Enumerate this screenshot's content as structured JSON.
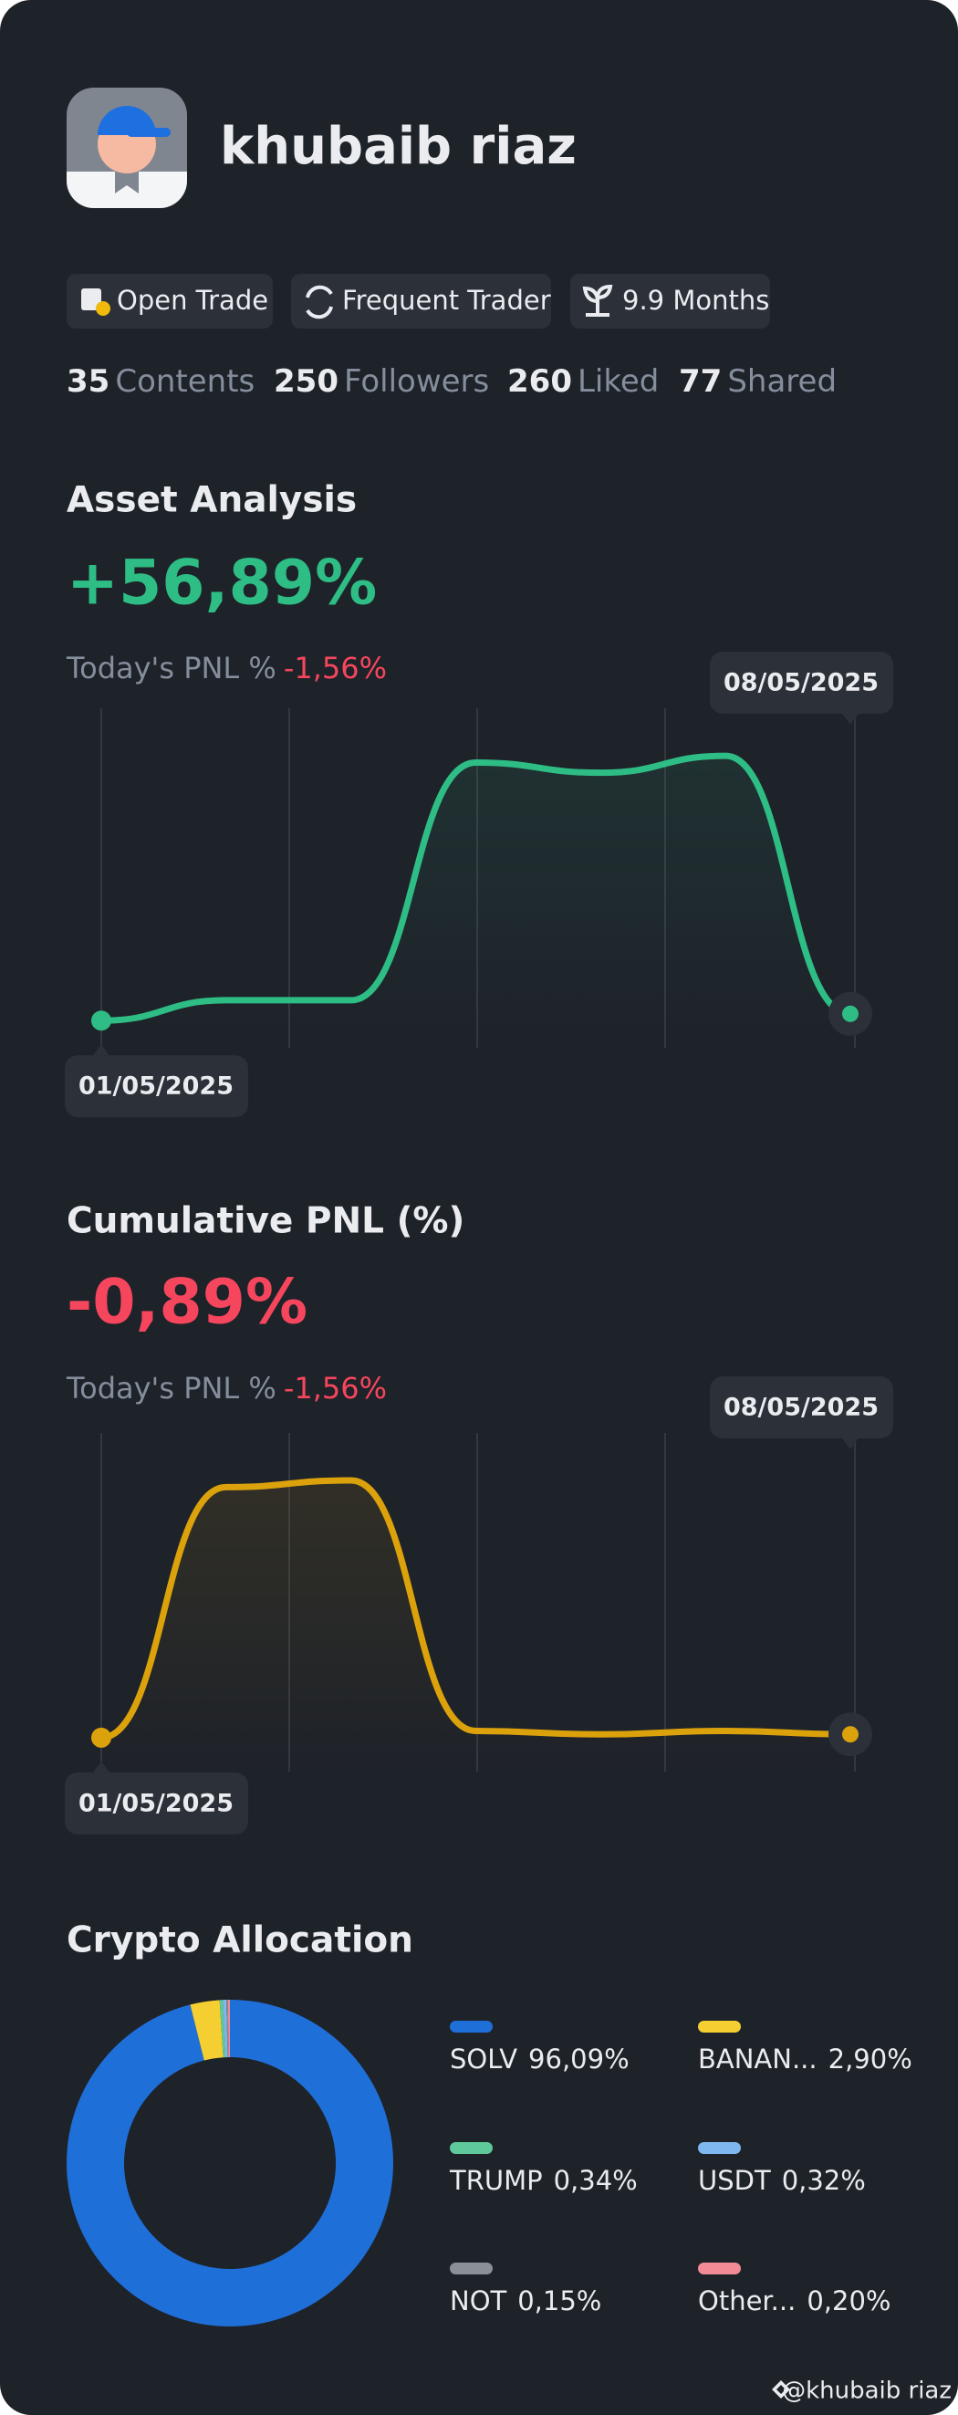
{
  "profile": {
    "name": "khubaib riaz",
    "badges": [
      "Open Trade",
      "Frequent Trader",
      "9.9 Months"
    ],
    "stats": [
      {
        "value": "35",
        "label": "Contents"
      },
      {
        "value": "250",
        "label": "Followers"
      },
      {
        "value": "260",
        "label": "Liked"
      },
      {
        "value": "77",
        "label": "Shared"
      }
    ]
  },
  "asset_analysis": {
    "title": "Asset Analysis",
    "value": "+56,89%",
    "today_label": "Today's PNL %",
    "today_value": "-1,56%",
    "chart": {
      "type": "line",
      "color": "#2ebd85",
      "values": [
        8,
        14,
        14,
        84,
        81,
        86,
        10
      ],
      "ylim": [
        0,
        100
      ],
      "start_label": "01/05/2025",
      "end_label": "08/05/2025"
    }
  },
  "cumulative_pnl": {
    "title": "Cumulative PNL (%)",
    "value": "-0,89%",
    "today_label": "Today's PNL %",
    "today_value": "-1,56%",
    "chart": {
      "type": "line",
      "color": "#dca20c",
      "values": [
        10,
        84,
        86,
        12,
        11,
        12,
        11
      ],
      "ylim": [
        0,
        100
      ],
      "start_label": "01/05/2025",
      "end_label": "08/05/2025"
    }
  },
  "crypto_allocation": {
    "title": "Crypto Allocation",
    "chart": {
      "type": "donut",
      "categories": [
        "SOLV",
        "BANAN...",
        "TRUMP",
        "USDT",
        "NOT",
        "Other..."
      ],
      "values": [
        96.09,
        2.9,
        0.34,
        0.32,
        0.15,
        0.2
      ],
      "value_labels": [
        "96,09%",
        "2,90%",
        "0,34%",
        "0,32%",
        "0,15%",
        "0,20%"
      ],
      "colors": [
        "#1f6fd8",
        "#f5cf32",
        "#5ec99a",
        "#7fb8f0",
        "#8a8f98",
        "#f28b96"
      ]
    }
  },
  "watermark": "@khubaib riaz"
}
